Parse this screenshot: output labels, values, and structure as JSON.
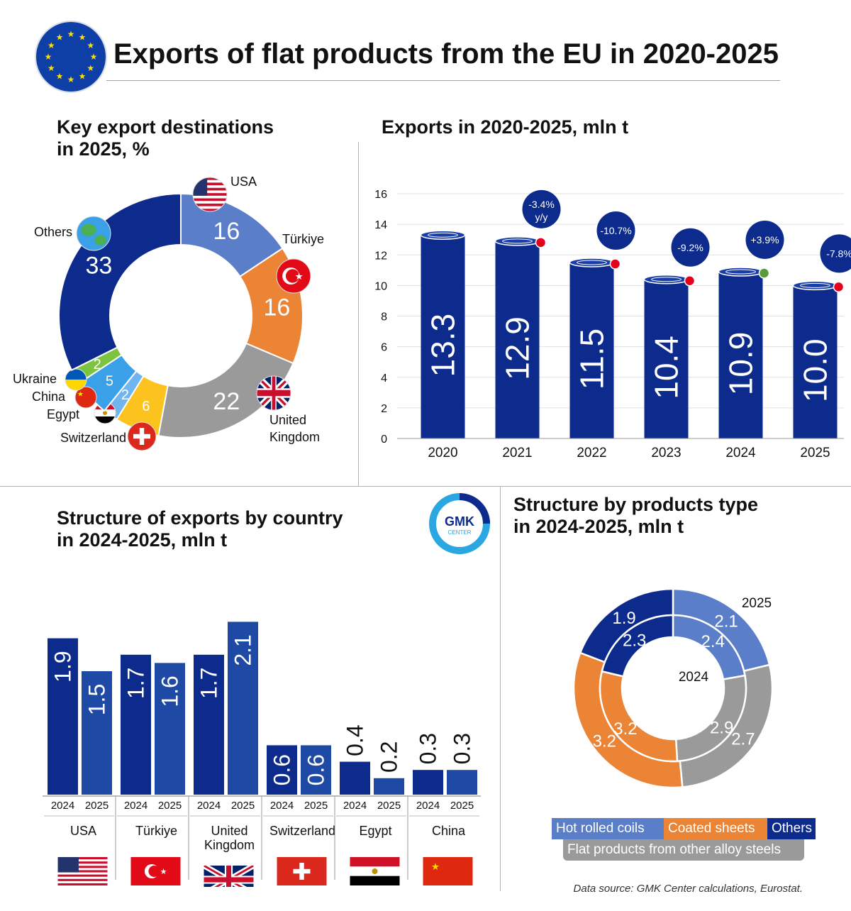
{
  "header": {
    "title": "Exports of flat products from the EU in 2020-2025",
    "logo_text": "GMK CENTER",
    "logo_line1": "GMK",
    "logo_line2": "CENTER",
    "source": "Data source: GMK Center calculations, Eurostat."
  },
  "colors": {
    "navy": "#0d2b8c",
    "light_blue": "#5b7ec8",
    "orange": "#ec8436",
    "gray": "#9a9a9a",
    "yellow": "#fcc31e",
    "sky": "#3aa0e8",
    "green": "#7cc440",
    "red_marker": "#e5001c",
    "green_marker": "#5b9a3a"
  },
  "chart_data": [
    {
      "type": "pie",
      "title": "Key export destinations in 2025, %",
      "title_lines": [
        "Key export destinations",
        "in 2025, %"
      ],
      "slices": [
        {
          "label": "USA",
          "value": 16,
          "color": "#5b7ec8",
          "icon": "usa-flag-icon"
        },
        {
          "label": "Türkiye",
          "value": 16,
          "color": "#ec8436",
          "icon": "turkey-flag-icon"
        },
        {
          "label": "United Kingdom",
          "value": 22,
          "color": "#9a9a9a",
          "icon": "uk-flag-icon"
        },
        {
          "label": "Switzerland",
          "value": 6,
          "color": "#fcc31e",
          "icon": "switzerland-flag-icon"
        },
        {
          "label": "Egypt",
          "value": 2,
          "color": "#6fb6f0",
          "icon": "egypt-flag-icon"
        },
        {
          "label": "China",
          "value": 5,
          "color": "#3aa0e8",
          "icon": "china-flag-icon"
        },
        {
          "label": "Ukraine",
          "value": 2,
          "color": "#7cc440",
          "icon": "ukraine-flag-icon"
        },
        {
          "label": "Others",
          "value": 33,
          "color": "#0d2b8c",
          "icon": "globe-icon"
        }
      ],
      "label_lines": {
        "United Kingdom": [
          "United",
          "Kingdom"
        ]
      }
    },
    {
      "type": "bar",
      "title": "Exports in 2020-2025, mln t",
      "categories": [
        "2020",
        "2021",
        "2022",
        "2023",
        "2024",
        "2025"
      ],
      "values": [
        13.3,
        12.9,
        11.5,
        10.4,
        10.9,
        10.0
      ],
      "value_labels": [
        "13.3",
        "12.9",
        "11.5",
        "10.4",
        "10.9",
        "10.0"
      ],
      "ylim": [
        0,
        16
      ],
      "yticks": [
        0,
        2,
        4,
        6,
        8,
        10,
        12,
        14,
        16
      ],
      "grid": true,
      "annotations": [
        {
          "year": "2021",
          "text": "-3.4%",
          "subtext": "y/y",
          "marker": "red"
        },
        {
          "year": "2022",
          "text": "-10.7%",
          "subtext": "",
          "marker": "red"
        },
        {
          "year": "2023",
          "text": "-9.2%",
          "subtext": "",
          "marker": "red"
        },
        {
          "year": "2024",
          "text": "+3.9%",
          "subtext": "",
          "marker": "green"
        },
        {
          "year": "2025",
          "text": "-7.8%",
          "subtext": "",
          "marker": "red"
        }
      ]
    },
    {
      "type": "bar",
      "title": "Structure of exports by country in 2024-2025, mln t",
      "title_lines": [
        "Structure of exports by country",
        "in 2024-2025, mln t"
      ],
      "categories": [
        "USA",
        "Türkiye",
        "United Kingdom",
        "Switzerland",
        "Egypt",
        "China"
      ],
      "category_lines": [
        [
          "USA"
        ],
        [
          "Türkiye"
        ],
        [
          "United",
          "Kingdom"
        ],
        [
          "Switzerland"
        ],
        [
          "Egypt"
        ],
        [
          "China"
        ]
      ],
      "flags": [
        "usa-flag-icon",
        "turkey-flag-icon",
        "uk-flag-icon",
        "switzerland-flag-icon",
        "egypt-flag-icon",
        "china-flag-icon"
      ],
      "series": [
        {
          "name": "2024",
          "values": [
            1.9,
            1.7,
            1.7,
            0.6,
            0.4,
            0.3
          ],
          "labels": [
            "1.9",
            "1.7",
            "1.7",
            "0.6",
            "0.4",
            "0.3"
          ]
        },
        {
          "name": "2025",
          "values": [
            1.5,
            1.6,
            2.1,
            0.6,
            0.2,
            0.3
          ],
          "labels": [
            "1.5",
            "1.6",
            "2.1",
            "0.6",
            "0.2",
            "0.3"
          ]
        }
      ]
    },
    {
      "type": "pie",
      "title": "Structure by products type in 2024-2025, mln t",
      "title_lines": [
        "Structure by products type",
        "in 2024-2025, mln t"
      ],
      "categories": [
        "Hot rolled coils",
        "Flat products from other alloy steels",
        "Coated sheets",
        "Others"
      ],
      "colors": [
        "#5b7ec8",
        "#9a9a9a",
        "#ec8436",
        "#0d2b8c"
      ],
      "series": [
        {
          "name": "2025",
          "ring": "outer",
          "values": [
            2.1,
            2.7,
            3.2,
            1.9
          ],
          "labels": [
            "2.1",
            "2.7",
            "3.2",
            "1.9"
          ]
        },
        {
          "name": "2024",
          "ring": "inner",
          "values": [
            2.4,
            2.9,
            3.2,
            2.3
          ],
          "labels": [
            "2.4",
            "2.9",
            "3.2",
            "2.3"
          ]
        }
      ],
      "legend": [
        "Hot rolled coils",
        "Coated sheets",
        "Others",
        "Flat products from other alloy steels"
      ]
    }
  ]
}
